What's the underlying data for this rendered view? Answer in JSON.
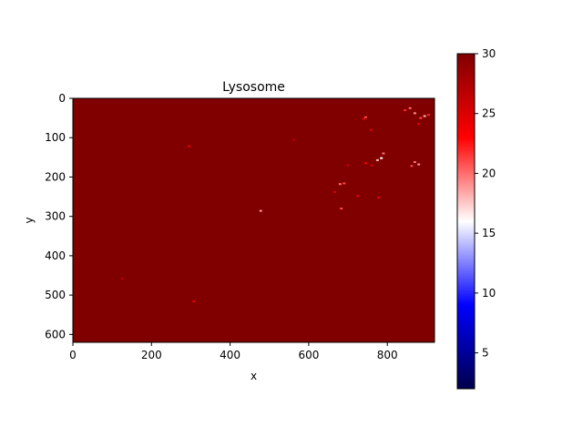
{
  "chart_data": {
    "type": "heatmap",
    "title": "Lysosome",
    "xlabel": "x",
    "ylabel": "y",
    "xlim": [
      0,
      920
    ],
    "ylim": [
      620,
      0
    ],
    "xticks": [
      0,
      200,
      400,
      600,
      800
    ],
    "yticks": [
      0,
      100,
      200,
      300,
      400,
      500,
      600
    ],
    "colorbar": {
      "min": 2,
      "max": 30,
      "ticks": [
        5,
        10,
        15,
        20,
        25,
        30
      ],
      "colormap": "seismic",
      "colors": [
        "#00004c",
        "#0000ff",
        "#ffffff",
        "#ff0000",
        "#800000"
      ]
    },
    "background_value": 30,
    "grid": false,
    "spots": [
      {
        "x": 845,
        "y": 30,
        "value": 22
      },
      {
        "x": 858,
        "y": 25,
        "value": 20
      },
      {
        "x": 870,
        "y": 38,
        "value": 19
      },
      {
        "x": 885,
        "y": 50,
        "value": 21
      },
      {
        "x": 895,
        "y": 45,
        "value": 18
      },
      {
        "x": 905,
        "y": 42,
        "value": 22
      },
      {
        "x": 880,
        "y": 65,
        "value": 24
      },
      {
        "x": 740,
        "y": 52,
        "value": 24
      },
      {
        "x": 745,
        "y": 48,
        "value": 21
      },
      {
        "x": 758,
        "y": 80,
        "value": 25
      },
      {
        "x": 790,
        "y": 140,
        "value": 20
      },
      {
        "x": 785,
        "y": 152,
        "value": 16
      },
      {
        "x": 775,
        "y": 157,
        "value": 18
      },
      {
        "x": 760,
        "y": 170,
        "value": 25
      },
      {
        "x": 745,
        "y": 165,
        "value": 24
      },
      {
        "x": 870,
        "y": 162,
        "value": 20
      },
      {
        "x": 880,
        "y": 168,
        "value": 19
      },
      {
        "x": 862,
        "y": 172,
        "value": 21
      },
      {
        "x": 700,
        "y": 170,
        "value": 26
      },
      {
        "x": 680,
        "y": 218,
        "value": 20
      },
      {
        "x": 690,
        "y": 216,
        "value": 21
      },
      {
        "x": 666,
        "y": 238,
        "value": 25
      },
      {
        "x": 725,
        "y": 248,
        "value": 24
      },
      {
        "x": 778,
        "y": 252,
        "value": 24
      },
      {
        "x": 683,
        "y": 280,
        "value": 21
      },
      {
        "x": 478,
        "y": 286,
        "value": 19
      },
      {
        "x": 296,
        "y": 122,
        "value": 24
      },
      {
        "x": 562,
        "y": 105,
        "value": 27
      },
      {
        "x": 308,
        "y": 516,
        "value": 24
      },
      {
        "x": 126,
        "y": 458,
        "value": 27
      }
    ]
  }
}
